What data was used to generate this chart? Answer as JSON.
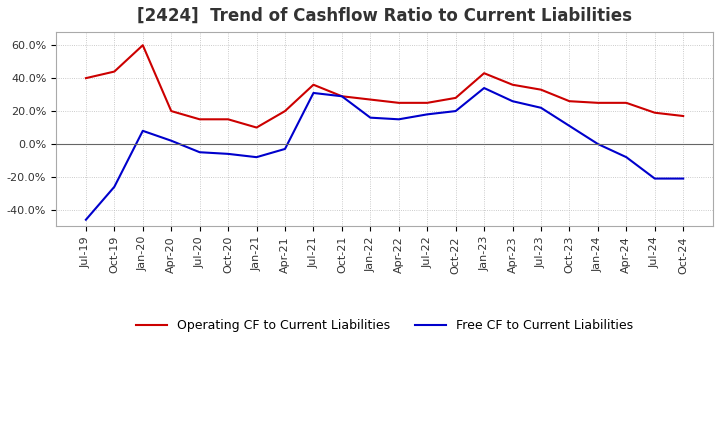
{
  "title": "[2424]  Trend of Cashflow Ratio to Current Liabilities",
  "x_labels": [
    "Jul-19",
    "Oct-19",
    "Jan-20",
    "Apr-20",
    "Jul-20",
    "Oct-20",
    "Jan-21",
    "Apr-21",
    "Jul-21",
    "Oct-21",
    "Jan-22",
    "Apr-22",
    "Jul-22",
    "Oct-22",
    "Jan-23",
    "Apr-23",
    "Jul-23",
    "Oct-23",
    "Jan-24",
    "Apr-24",
    "Jul-24",
    "Oct-24"
  ],
  "operating_cf": [
    0.4,
    0.44,
    0.6,
    0.2,
    0.15,
    0.15,
    0.1,
    0.2,
    0.36,
    0.29,
    0.27,
    0.25,
    0.25,
    0.28,
    0.43,
    0.36,
    0.33,
    0.26,
    0.25,
    0.25,
    0.19,
    0.17
  ],
  "free_cf": [
    -0.46,
    -0.26,
    0.08,
    0.02,
    -0.05,
    -0.06,
    -0.08,
    -0.03,
    0.31,
    0.29,
    0.16,
    0.15,
    0.18,
    0.2,
    0.34,
    0.26,
    0.22,
    0.11,
    0.0,
    -0.08,
    -0.21,
    -0.21
  ],
  "operating_cf_color": "#cc0000",
  "free_cf_color": "#0000cc",
  "ylim": [
    -0.5,
    0.68
  ],
  "yticks": [
    -0.4,
    -0.2,
    0.0,
    0.2,
    0.4,
    0.6
  ],
  "ytick_labels": [
    "-40.0%",
    "-20.0%",
    "0.0%",
    "20.0%",
    "40.0%",
    "60.0%"
  ],
  "legend_operating": "Operating CF to Current Liabilities",
  "legend_free": "Free CF to Current Liabilities",
  "background_color": "#ffffff",
  "plot_bg_color": "#ffffff",
  "grid_color": "#bbbbbb",
  "title_fontsize": 12,
  "axis_fontsize": 8,
  "legend_fontsize": 9,
  "line_width": 1.5
}
